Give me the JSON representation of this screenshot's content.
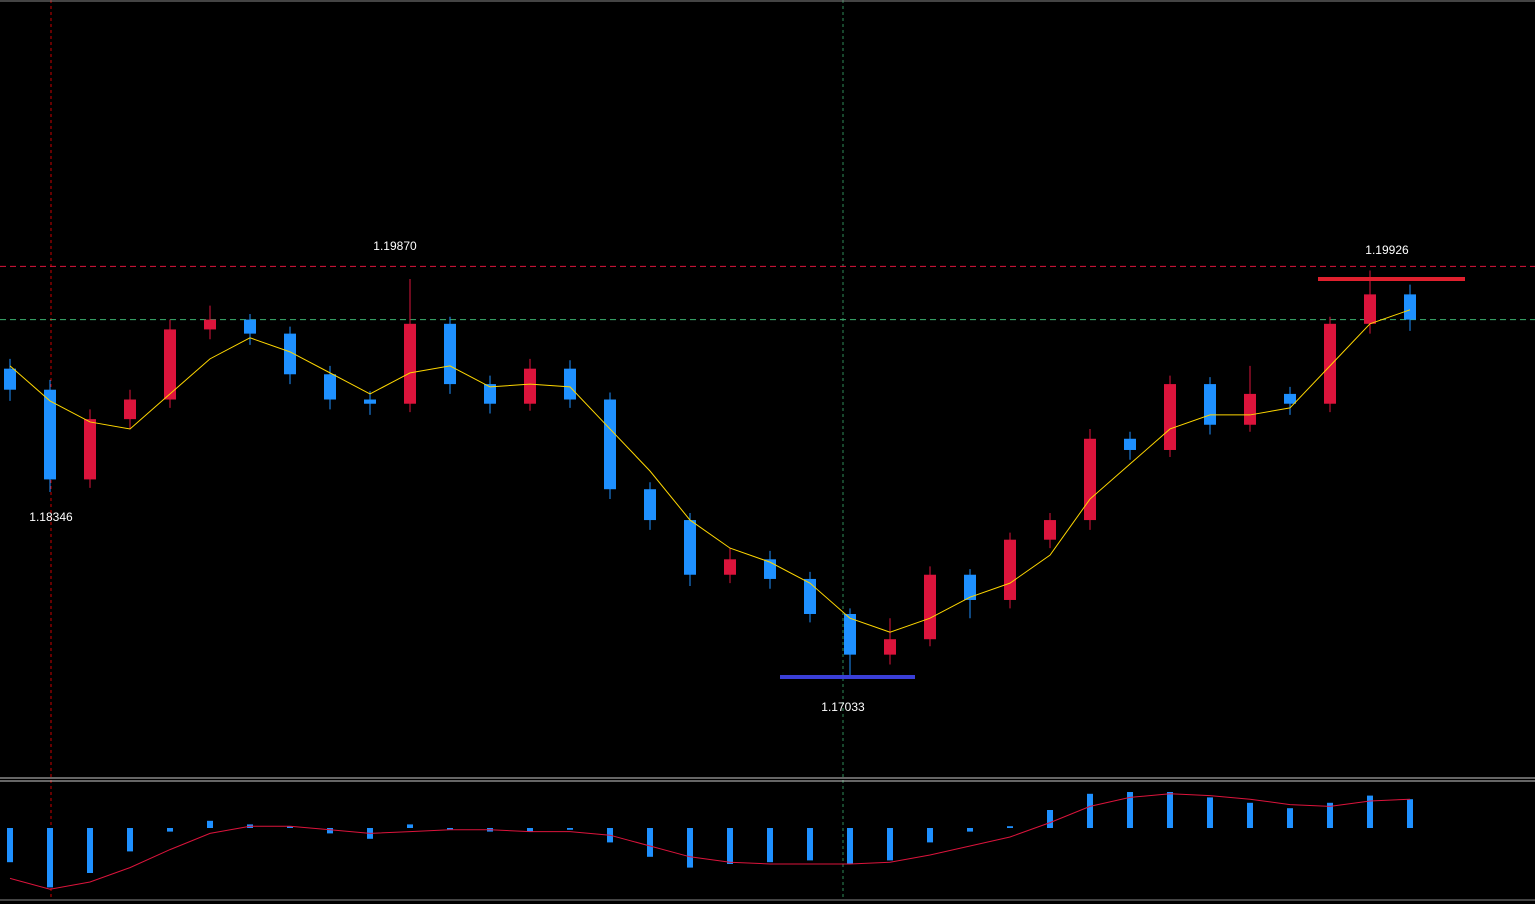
{
  "chart_data": {
    "type": "candlestick",
    "open": [
      1.1923,
      1.1908,
      1.1844,
      1.1887,
      1.1901,
      1.1951,
      1.1958,
      1.1948,
      1.1919,
      1.1901,
      1.1898,
      1.1955,
      1.1912,
      1.1898,
      1.1923,
      1.1901,
      1.1837,
      1.1815,
      1.1776,
      1.1787,
      1.1773,
      1.1748,
      1.1719,
      1.173,
      1.1776,
      1.1758,
      1.1801,
      1.1815,
      1.1873,
      1.1865,
      1.1912,
      1.1883,
      1.1905,
      1.1898,
      1.1955,
      1.1976
    ],
    "high": [
      1.193,
      1.1915,
      1.1894,
      1.1908,
      1.1958,
      1.1968,
      1.1962,
      1.1953,
      1.1925,
      1.1907,
      1.1987,
      1.196,
      1.1918,
      1.193,
      1.1929,
      1.1906,
      1.1842,
      1.182,
      1.1795,
      1.1793,
      1.1778,
      1.1752,
      1.1745,
      1.1782,
      1.178,
      1.1806,
      1.182,
      1.188,
      1.1878,
      1.1918,
      1.1917,
      1.1925,
      1.191,
      1.196,
      1.1993,
      1.1983
    ],
    "low": [
      1.19,
      1.1835,
      1.1838,
      1.188,
      1.1895,
      1.1944,
      1.194,
      1.1912,
      1.1894,
      1.189,
      1.1892,
      1.1905,
      1.1891,
      1.1893,
      1.1895,
      1.183,
      1.1808,
      1.1768,
      1.177,
      1.1766,
      1.1742,
      1.1703,
      1.1712,
      1.1725,
      1.1745,
      1.1752,
      1.1795,
      1.1808,
      1.1858,
      1.186,
      1.1876,
      1.1878,
      1.189,
      1.1892,
      1.1948,
      1.195
    ],
    "close": [
      1.1908,
      1.1844,
      1.1887,
      1.1901,
      1.1951,
      1.1958,
      1.1948,
      1.1919,
      1.1901,
      1.1898,
      1.1955,
      1.1912,
      1.1898,
      1.1923,
      1.1901,
      1.1837,
      1.1815,
      1.1776,
      1.1787,
      1.1773,
      1.1748,
      1.1719,
      1.173,
      1.1776,
      1.1758,
      1.1801,
      1.1815,
      1.1873,
      1.1865,
      1.1912,
      1.1883,
      1.1905,
      1.1898,
      1.1955,
      1.1976,
      1.1958
    ],
    "ma": [
      1.1925,
      1.19,
      1.1885,
      1.188,
      1.1905,
      1.193,
      1.1945,
      1.1935,
      1.192,
      1.1905,
      1.192,
      1.1925,
      1.191,
      1.1912,
      1.191,
      1.188,
      1.185,
      1.1815,
      1.1795,
      1.1785,
      1.177,
      1.1745,
      1.1735,
      1.1745,
      1.176,
      1.177,
      1.179,
      1.183,
      1.1855,
      1.188,
      1.189,
      1.189,
      1.1895,
      1.1925,
      1.1955,
      1.1965
    ],
    "up_color": "#dc143c",
    "down_color": "#1e90ff",
    "ma_color": "#ffd700",
    "ylim": [
      1.1631,
      1.2186
    ],
    "levels": [
      {
        "value": 1.1996,
        "color": "#dc143c"
      },
      {
        "value": 1.1958,
        "color": "#3cb371"
      }
    ],
    "annotations": [
      "1.19870",
      "1.19926",
      "1.18346",
      "1.17033"
    ],
    "indicator": {
      "histogram": [
        -0.0019,
        -0.0033,
        -0.0025,
        -0.0013,
        -0.0002,
        0.0004,
        0.0002,
        0.0001,
        -0.0003,
        -0.0006,
        0.0002,
        -0.0001,
        -0.0002,
        -0.0002,
        -0.0001,
        -0.0008,
        -0.0016,
        -0.0022,
        -0.002,
        -0.0019,
        -0.0018,
        -0.002,
        -0.0018,
        -0.0008,
        -0.0002,
        0.0001,
        0.001,
        0.0019,
        0.002,
        0.002,
        0.0017,
        0.0014,
        0.0011,
        0.0014,
        0.0018,
        0.0016
      ],
      "signal": [
        -0.0028,
        -0.0034,
        -0.003,
        -0.0022,
        -0.0012,
        -0.0003,
        0.0001,
        0.0001,
        -0.0001,
        -0.0003,
        -0.0002,
        -0.0001,
        -0.0001,
        -0.0002,
        -0.0002,
        -0.0004,
        -0.001,
        -0.0016,
        -0.0019,
        -0.002,
        -0.002,
        -0.002,
        -0.0019,
        -0.0015,
        -0.001,
        -0.0005,
        0.0003,
        0.0012,
        0.0017,
        0.0019,
        0.0018,
        0.0016,
        0.0013,
        0.0012,
        0.0015,
        0.0016
      ],
      "histogram_color": "#1e90ff",
      "signal_color": "#dc143c",
      "ylim": [
        -0.004,
        0.0025
      ]
    }
  }
}
